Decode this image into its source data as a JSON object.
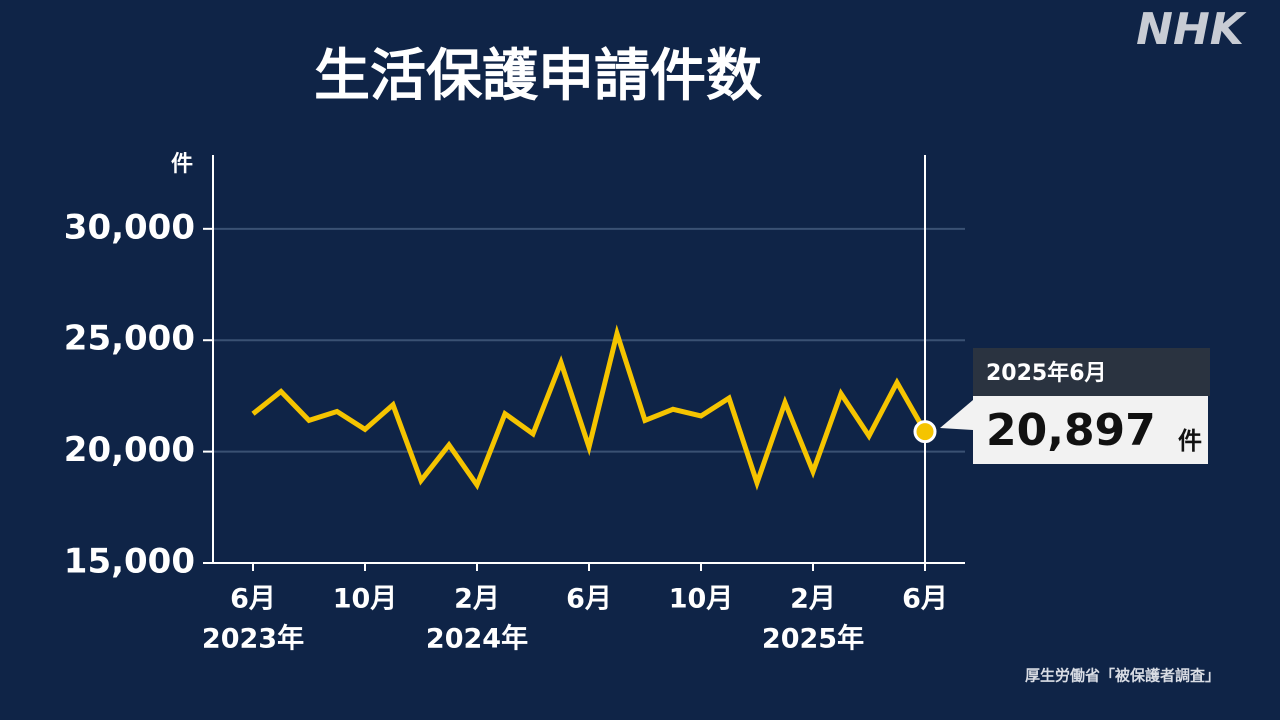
{
  "logo": "NHK",
  "source": "厚生労働省「被保護者調査」",
  "chart_data": {
    "type": "line",
    "title": "生活保護申請件数",
    "unit": "件",
    "categories": [
      "6月",
      null,
      null,
      null,
      "10月",
      null,
      null,
      null,
      "2月",
      null,
      null,
      null,
      "6月",
      null,
      null,
      null,
      "10月",
      null,
      null,
      null,
      "2月",
      null,
      null,
      null,
      "6月"
    ],
    "category_years": [
      "2023年",
      null,
      null,
      null,
      null,
      null,
      null,
      null,
      "2024年",
      null,
      null,
      null,
      null,
      null,
      null,
      null,
      null,
      null,
      null,
      null,
      "2025年",
      null,
      null,
      null,
      null
    ],
    "values": [
      21700,
      22700,
      21400,
      21800,
      21000,
      22100,
      18700,
      20300,
      18500,
      21700,
      20800,
      24000,
      20200,
      25300,
      21400,
      21900,
      21600,
      22400,
      18600,
      22200,
      19100,
      22600,
      20700,
      23100,
      20897
    ],
    "value_labels": [
      null,
      null,
      null,
      null,
      null,
      null,
      null,
      null,
      null,
      null,
      null,
      null,
      null,
      null,
      null,
      null,
      null,
      null,
      null,
      null,
      null,
      null,
      null,
      null,
      "20,897"
    ],
    "callout_title": "2025年6月",
    "color": "#f5c400",
    "ylim": [
      15000,
      33000
    ],
    "yticks": [
      {
        "value": 15000,
        "label": "15,000"
      },
      {
        "value": 20000,
        "label": "20,000"
      },
      {
        "value": 25000,
        "label": "25,000"
      },
      {
        "value": 30000,
        "label": "30,000"
      }
    ],
    "grid": true
  }
}
